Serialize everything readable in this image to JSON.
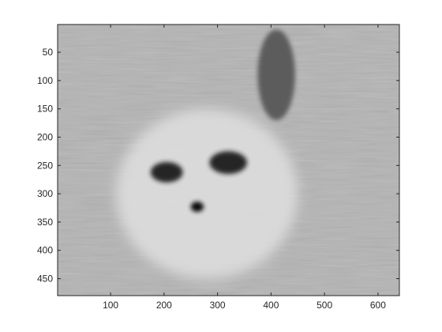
{
  "chart_data": {
    "type": "heatmap",
    "colormap": "gray",
    "x_ticks": [
      100,
      200,
      300,
      400,
      500,
      600
    ],
    "y_ticks": [
      50,
      100,
      150,
      200,
      250,
      300,
      350,
      400,
      450
    ],
    "xlim": [
      1,
      640
    ],
    "ylim": [
      1,
      480
    ],
    "y_direction": "reverse",
    "grid": false,
    "legend": "none",
    "colors": {
      "background": "#b4b4b4",
      "dark_features": "#1a1a1a",
      "bright_regions": "#e8e8e8",
      "axis": "#262626"
    },
    "features": [
      {
        "name": "left dark eye patch",
        "cx": 205,
        "cy": 262,
        "rx": 30,
        "ry": 18,
        "level": 0.1
      },
      {
        "name": "right dark eye patch",
        "cx": 320,
        "cy": 245,
        "rx": 35,
        "ry": 20,
        "level": 0.1
      },
      {
        "name": "nose dark spot",
        "cx": 262,
        "cy": 323,
        "rx": 12,
        "ry": 9,
        "level": 0.02
      },
      {
        "name": "upper-right dark vertical stripe",
        "cx": 410,
        "cy": 90,
        "rx": 35,
        "ry": 80,
        "level": 0.35
      },
      {
        "name": "bright face region",
        "cx": 280,
        "cy": 300,
        "rx": 170,
        "ry": 150,
        "level": 0.88
      }
    ]
  }
}
